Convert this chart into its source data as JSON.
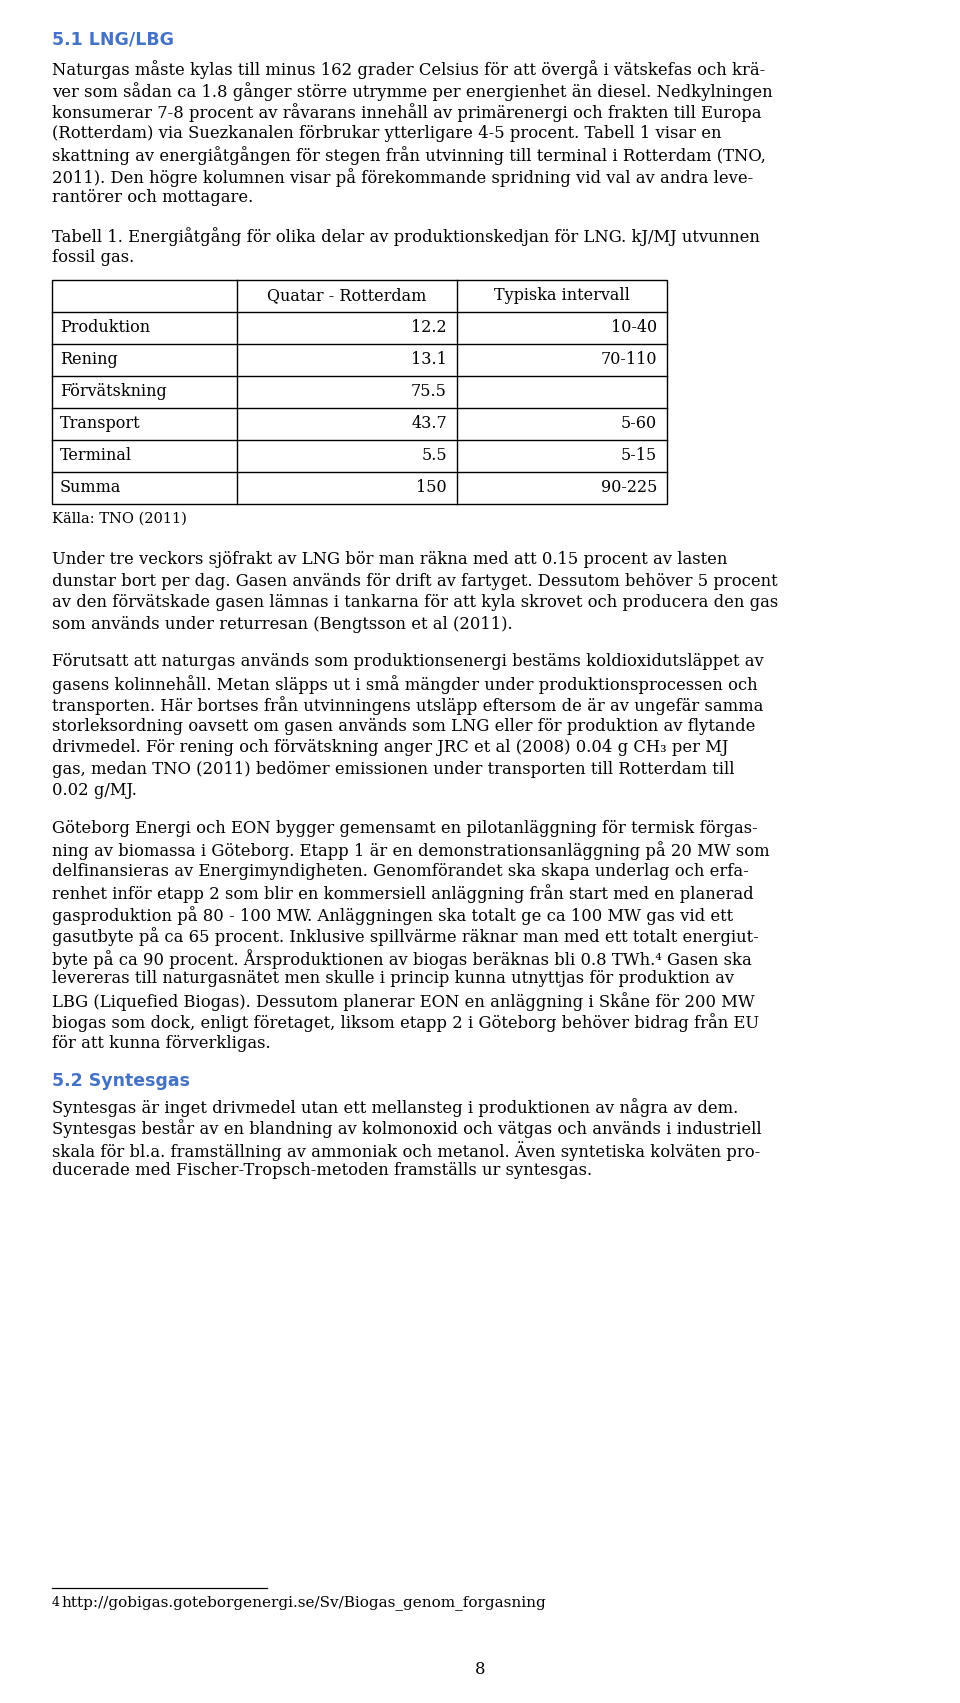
{
  "heading": "5.1 LNG/LBG",
  "heading_color": "#4472c4",
  "bg_color": "#ffffff",
  "text_color": "#000000",
  "para1_lines": [
    "Naturgas måste kylas till minus 162 grader Celsius för att övergå i vätskefas och krä-",
    "ver som sådan ca 1.8 gånger större utrymme per energienhet än diesel. Nedkylningen",
    "konsumerar 7-8 procent av råvarans innehåll av primärenergi och frakten till Europa",
    "(Rotterdam) via Suezkanalen förbrukar ytterligare 4-5 procent. Tabell 1 visar en",
    "skattning av energiåtgången för stegen från utvinning till terminal i Rotterdam (TNO,",
    "2011). Den högre kolumnen visar på förekommande spridning vid val av andra leve-",
    "rantörer och mottagare."
  ],
  "table_caption_lines": [
    "Tabell 1. Energiåtgång för olika delar av produktionskedjan för LNG. kJ/MJ utvunnen",
    "fossil gas."
  ],
  "table_header": [
    "",
    "Quatar - Rotterdam",
    "Typiska intervall"
  ],
  "table_rows": [
    [
      "Produktion",
      "12.2",
      "10-40"
    ],
    [
      "Rening",
      "13.1",
      "70-110"
    ],
    [
      "Förvätskning",
      "75.5",
      ""
    ],
    [
      "Transport",
      "43.7",
      "5-60"
    ],
    [
      "Terminal",
      "5.5",
      "5-15"
    ],
    [
      "Summa",
      "150",
      "90-225"
    ]
  ],
  "table_source": "Källa: TNO (2011)",
  "para2_lines": [
    "Under tre veckors sjöfrakt av LNG bör man räkna med att 0.15 procent av lasten",
    "dunstar bort per dag. Gasen används för drift av fartyget. Dessutom behöver 5 procent",
    "av den förvätskade gasen lämnas i tankarna för att kyla skrovet och producera den gas",
    "som används under returresan (Bengtsson et al (2011)."
  ],
  "para3_lines": [
    "Förutsatt att naturgas används som produktionsenergi bestäms koldioxidutsläppet av",
    "gasens kolinnehåll. Metan släpps ut i små mängder under produktionsprocessen och",
    "transporten. Här bortses från utvinningens utsläpp eftersom de är av ungefär samma",
    "storleksordning oavsett om gasen används som LNG eller för produktion av flytande",
    "drivmedel. För rening och förvätskning anger JRC et al (2008) 0.04 g CH₃ per MJ",
    "gas, medan TNO (2011) bedömer emissionen under transporten till Rotterdam till",
    "0.02 g/MJ."
  ],
  "para4_lines": [
    "Göteborg Energi och EON bygger gemensamt en pilotanläggning för termisk förgas-",
    "ning av biomassa i Göteborg. Etapp 1 är en demonstrationsanläggning på 20 MW som",
    "delfinansieras av Energimyndigheten. Genomförandet ska skapa underlag och erfa-",
    "renhet inför etapp 2 som blir en kommersiell anläggning från start med en planerad",
    "gasproduktion på 80 - 100 MW. Anläggningen ska totalt ge ca 100 MW gas vid ett",
    "gasutbyte på ca 65 procent. Inklusive spillvärme räknar man med ett totalt energiut-",
    "byte på ca 90 procent. Årsproduktionen av biogas beräknas bli 0.8 TWh.⁴ Gasen ska",
    "levereras till naturgasnätet men skulle i princip kunna utnyttjas för produktion av",
    "LBG (Liquefied Biogas). Dessutom planerar EON en anläggning i Skåne för 200 MW",
    "biogas som dock, enligt företaget, liksom etapp 2 i Göteborg behöver bidrag från EU",
    "för att kunna förverkligas."
  ],
  "heading2": "5.2 Syntesgas",
  "heading2_color": "#4472c4",
  "para5_lines": [
    "Syntesgas är inget drivmedel utan ett mellansteg i produktionen av några av dem.",
    "Syntesgas består av en blandning av kolmonoxid och vätgas och används i industriell",
    "skala för bl.a. framställning av ammoniak och metanol. Även syntetiska kolväten pro-",
    "ducerade med Fischer-Tropsch-metoden framställs ur syntesgas."
  ],
  "footnote_superscript": "4",
  "footnote_url": "http://gobigas.goteborgenergi.se/Sv/Biogas_genom_forgasning",
  "page_number": "8"
}
